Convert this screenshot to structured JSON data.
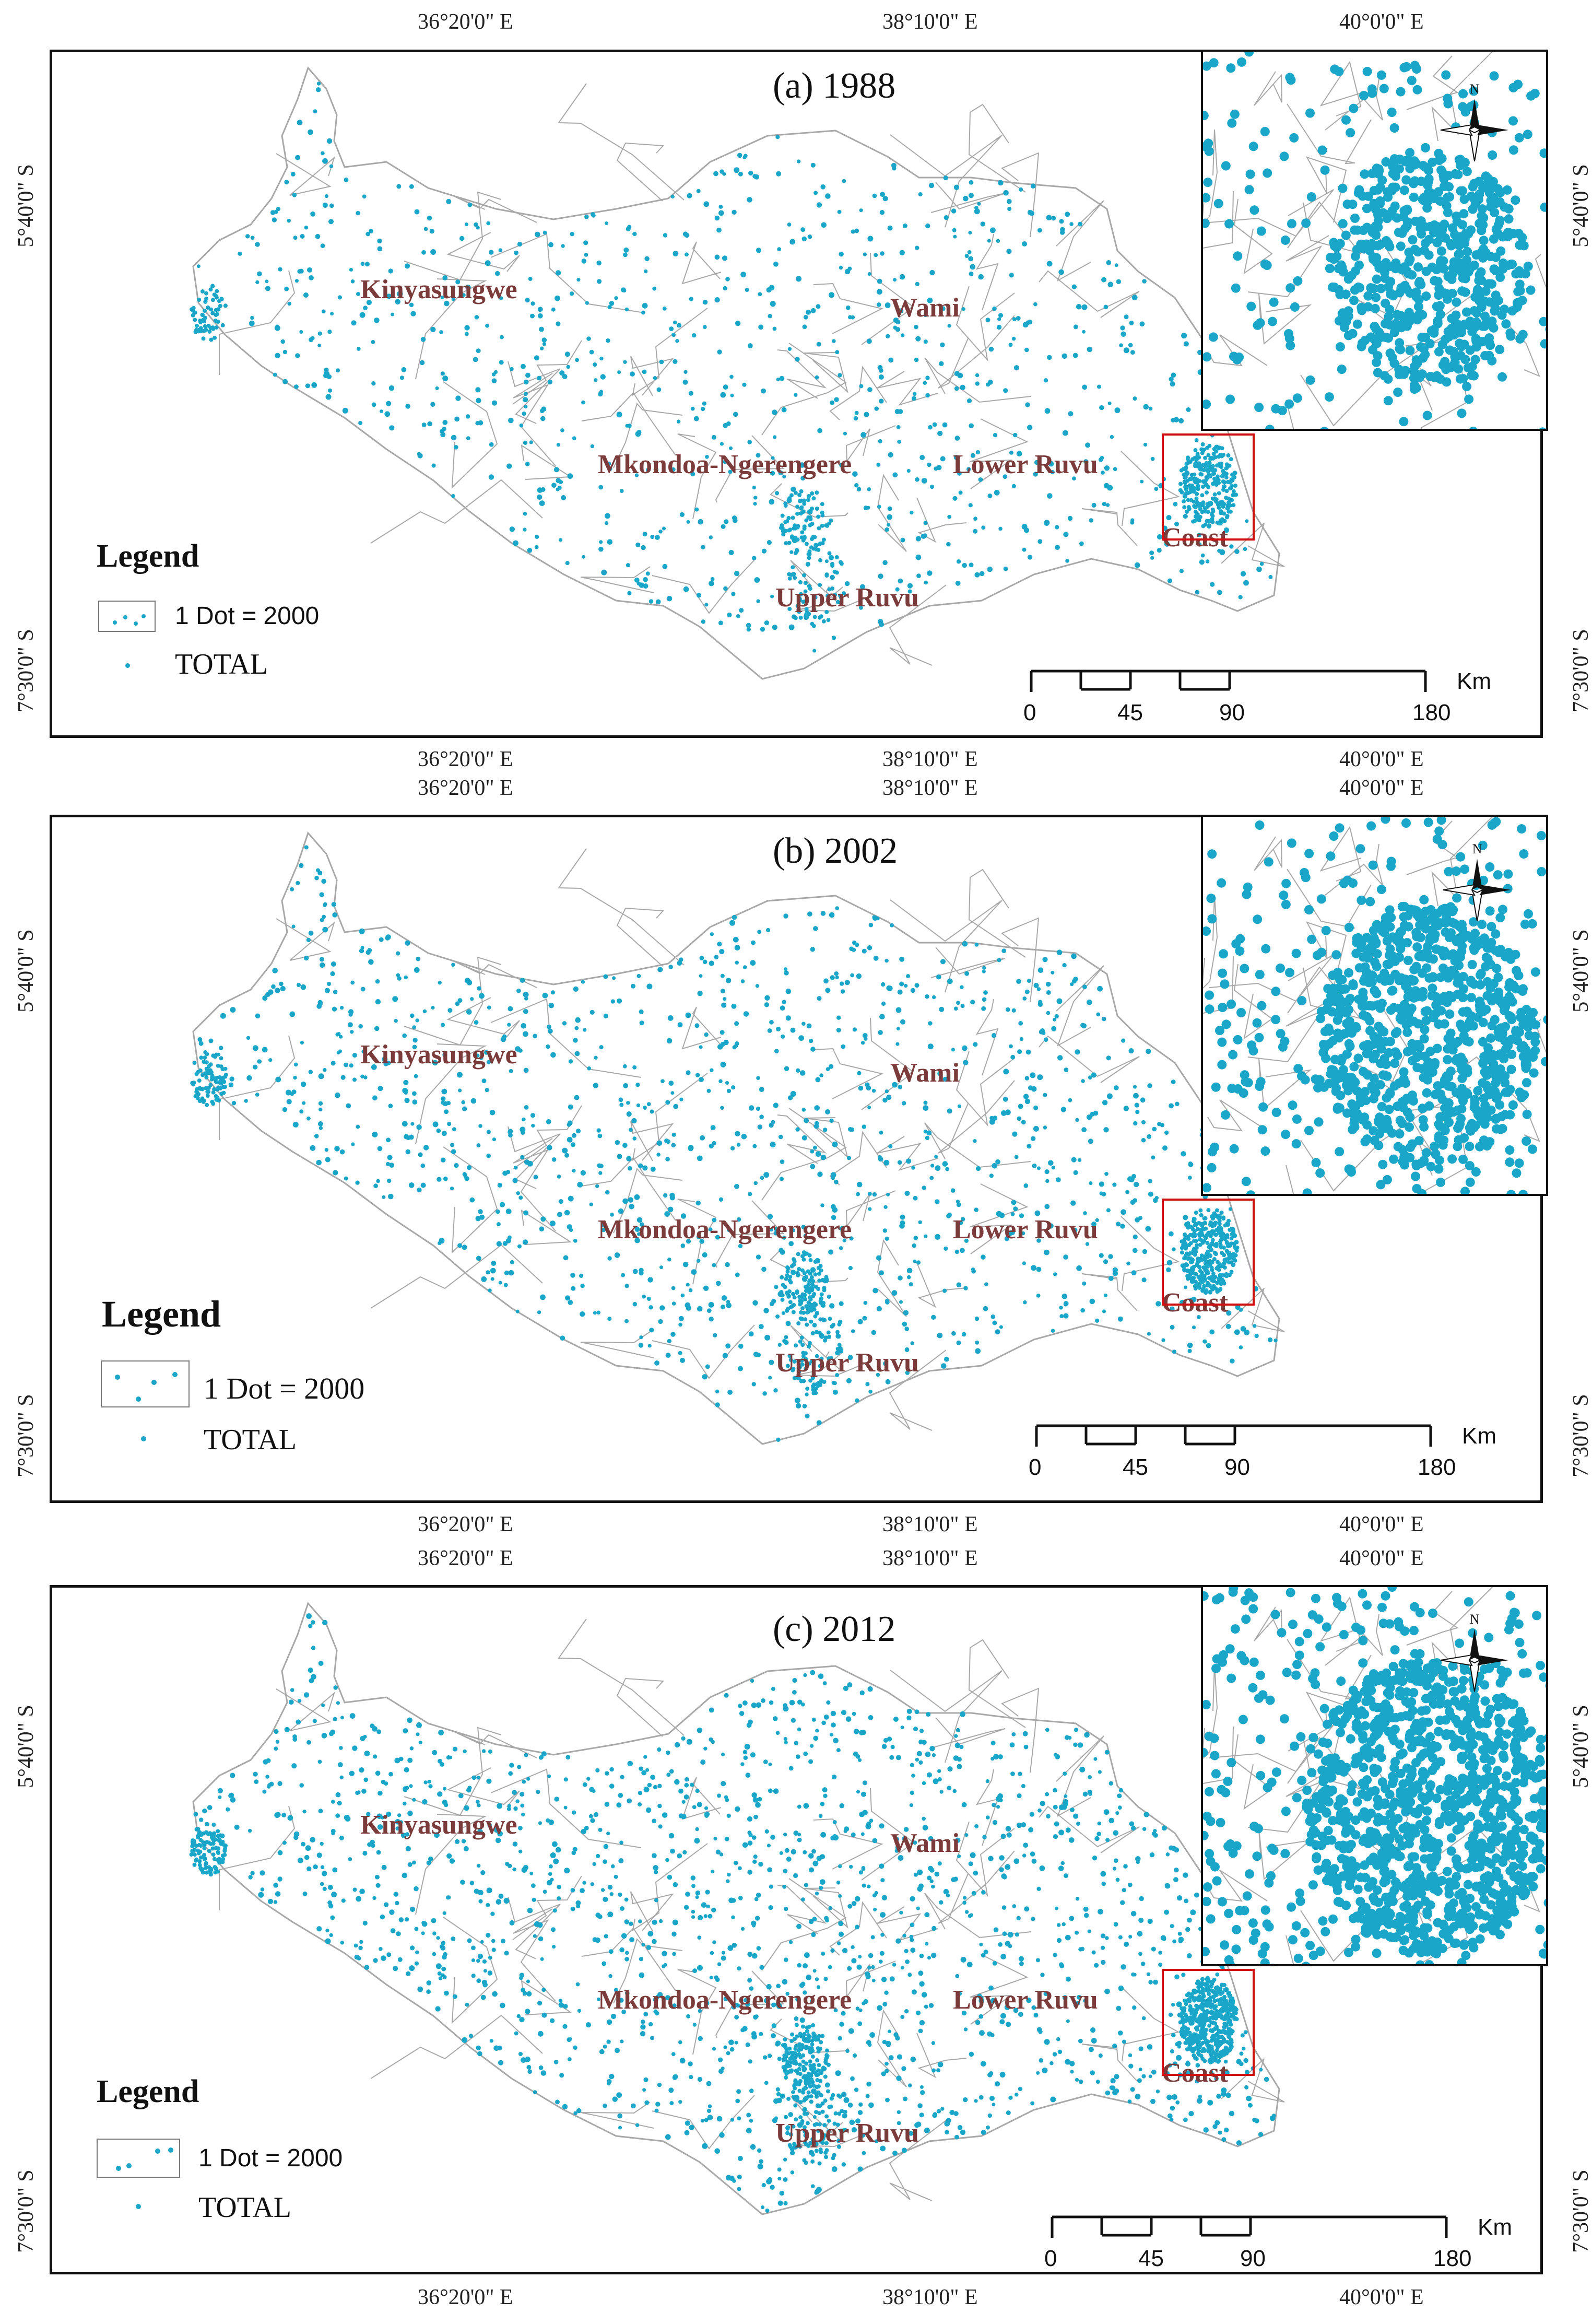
{
  "colors": {
    "dot": "#1aa6c8",
    "boundary": "#a8a8a8",
    "region_label": "#7b3b3b",
    "frame": "#111111",
    "highlight": "#d01010"
  },
  "longitude_ticks": [
    "36°20'0\" E",
    "38°10'0\" E",
    "40°0'0\" E"
  ],
  "latitude_ticks": [
    "5°40'0\" S",
    "7°30'0\" S"
  ],
  "regions": [
    "Kinyasungwe",
    "Wami",
    "Mkondoa-Ngerengere",
    "Lower Ruvu",
    "Coast",
    "Upper Ruvu"
  ],
  "legend": {
    "title": "Legend",
    "dot_value": "1 Dot = 2000",
    "total_label": "TOTAL"
  },
  "scale": {
    "unit": "Km",
    "ticks": [
      "0",
      "45",
      "90",
      "180"
    ]
  },
  "north_arrow": {
    "label": "N",
    "icon": "north-arrow-icon"
  },
  "panels": [
    {
      "title": "(a) 1988",
      "dot_density": 1.0
    },
    {
      "title": "(b) 2002",
      "dot_density": 1.35
    },
    {
      "title": "(c) 2012",
      "dot_density": 1.8
    }
  ]
}
